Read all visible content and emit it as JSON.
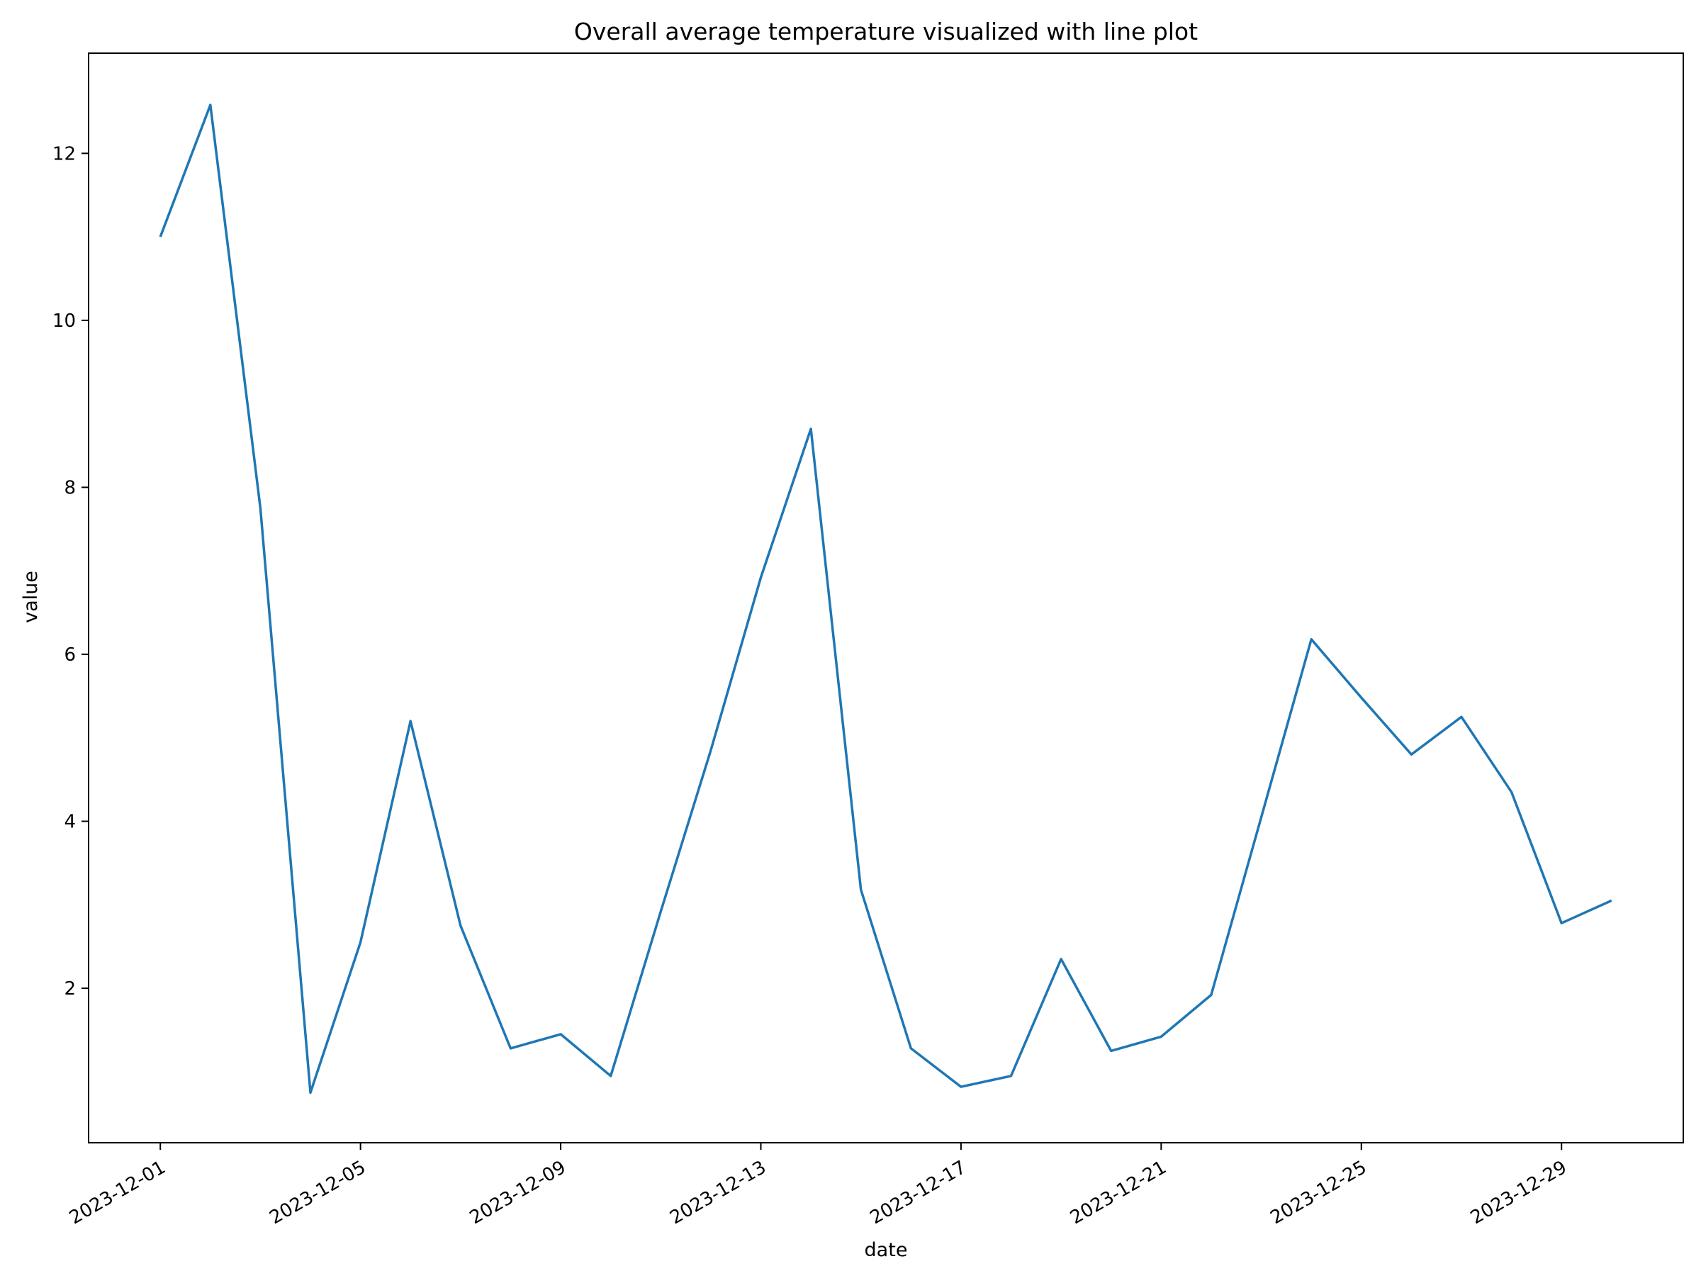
{
  "chart_data": {
    "type": "line",
    "title": "Overall average temperature visualized with line plot",
    "xlabel": "date",
    "ylabel": "value",
    "x_ticks": [
      "2023-12-01",
      "2023-12-05",
      "2023-12-09",
      "2023-12-13",
      "2023-12-17",
      "2023-12-21",
      "2023-12-25",
      "2023-12-29"
    ],
    "y_ticks": [
      2,
      4,
      6,
      8,
      10,
      12
    ],
    "xlim": [
      "2023-11-29T13:36",
      "2023-12-31T10:24"
    ],
    "ylim": [
      0.15,
      13.2
    ],
    "grid": false,
    "line_color": "#1f77b4",
    "series": [
      {
        "x": [
          "2023-12-01",
          "2023-12-02",
          "2023-12-03",
          "2023-12-04",
          "2023-12-05",
          "2023-12-06",
          "2023-12-07",
          "2023-12-08",
          "2023-12-09",
          "2023-12-10",
          "2023-12-11",
          "2023-12-12",
          "2023-12-13",
          "2023-12-14",
          "2023-12-15",
          "2023-12-16",
          "2023-12-17",
          "2023-12-18",
          "2023-12-19",
          "2023-12-20",
          "2023-12-21",
          "2023-12-22",
          "2023-12-23",
          "2023-12-24",
          "2023-12-25",
          "2023-12-26",
          "2023-12-27",
          "2023-12-28",
          "2023-12-29",
          "2023-12-30"
        ],
        "values": [
          11.0,
          12.58,
          7.75,
          0.75,
          2.55,
          5.2,
          2.75,
          1.28,
          1.45,
          0.95,
          2.92,
          4.85,
          6.92,
          8.7,
          3.18,
          1.28,
          0.82,
          0.95,
          2.35,
          1.25,
          1.42,
          1.92,
          4.05,
          6.18,
          5.48,
          4.8,
          5.25,
          4.35,
          2.78,
          3.05
        ]
      }
    ]
  }
}
